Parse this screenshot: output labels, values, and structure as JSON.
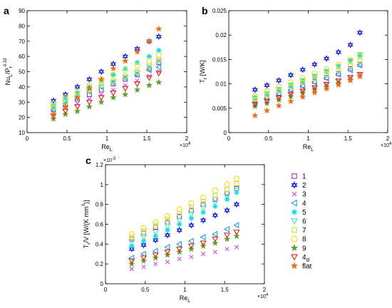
{
  "figure": {
    "width": 550,
    "height": 432
  },
  "legend": [
    {
      "key": "1",
      "label": "1",
      "color": "#9b30c8",
      "marker": "square"
    },
    {
      "key": "2",
      "label": "2",
      "color": "#1a28d6",
      "marker": "star6"
    },
    {
      "key": "3",
      "label": "3",
      "color": "#d04ce0",
      "marker": "x"
    },
    {
      "key": "4",
      "label": "4",
      "color": "#1aa0dc",
      "marker": "triangle-left"
    },
    {
      "key": "5",
      "label": "5",
      "color": "#10dcee",
      "marker": "asterisk"
    },
    {
      "key": "6",
      "label": "6",
      "color": "#48e2a6",
      "marker": "triangle-down"
    },
    {
      "key": "7",
      "label": "7",
      "color": "#bde23a",
      "marker": "square"
    },
    {
      "key": "8",
      "label": "8",
      "color": "#f4dc14",
      "marker": "circle"
    },
    {
      "key": "9",
      "label": "9",
      "color": "#5ea02a",
      "marker": "star5"
    },
    {
      "key": "4d",
      "label": "4",
      "sub": "d",
      "color": "#e02418",
      "marker": "triangle-down"
    },
    {
      "key": "flat",
      "label": "flat",
      "color": "#f06a18",
      "marker": "star5"
    }
  ],
  "chart_data": [
    {
      "panel": "a",
      "type": "scatter",
      "xlabel": "Re",
      "xlabel_sub": "L",
      "ylabel": "Nu",
      "ylabel_sub": "L",
      "ylabel_rest": "/P",
      "ylabel_sub2": "r",
      "ylabel_sup": "0.33",
      "xlim": [
        0,
        20000
      ],
      "ylim": [
        10,
        90
      ],
      "xticks": [
        0,
        0.5,
        1,
        1.5,
        2
      ],
      "xtick_labels": [
        "0",
        "0.5",
        "1",
        "1.5",
        "2"
      ],
      "x_multiplier": "×10",
      "x_multiplier_exp": "4",
      "yticks": [
        10,
        20,
        30,
        40,
        50,
        60,
        70,
        80,
        90
      ],
      "ytick_labels": [
        "10",
        "20",
        "30",
        "40",
        "50",
        "60",
        "70",
        "80",
        "90"
      ],
      "x": [
        3300,
        4800,
        6300,
        7800,
        9300,
        10800,
        12300,
        13800,
        15300,
        16500
      ],
      "series": [
        {
          "key": "1",
          "values": [
            25,
            28,
            32,
            35,
            38,
            42,
            45,
            48,
            52,
            56
          ]
        },
        {
          "key": "2",
          "values": [
            31,
            35,
            40,
            45,
            50,
            55,
            60,
            65,
            70,
            73
          ]
        },
        {
          "key": "3",
          "values": [
            23,
            26,
            29,
            32,
            35,
            38,
            41,
            44,
            47,
            50
          ]
        },
        {
          "key": "4",
          "values": [
            25,
            29,
            33,
            37,
            40,
            43,
            46,
            48,
            51,
            53
          ]
        },
        {
          "key": "5",
          "values": [
            28,
            32,
            36,
            40,
            44,
            48,
            52,
            56,
            60,
            64
          ]
        },
        {
          "key": "6",
          "values": [
            26,
            30,
            33,
            37,
            40,
            43,
            46,
            49,
            53,
            57
          ]
        },
        {
          "key": "7",
          "values": [
            27,
            30,
            34,
            38,
            41,
            44,
            47,
            50,
            54,
            58
          ]
        },
        {
          "key": "8",
          "values": [
            29,
            33,
            37,
            41,
            45,
            48,
            51,
            54,
            57,
            61
          ]
        },
        {
          "key": "9",
          "values": [
            19,
            22,
            24,
            27,
            30,
            33,
            35,
            38,
            41,
            43
          ]
        },
        {
          "key": "4d",
          "values": [
            21,
            24,
            27,
            30,
            33,
            36,
            39,
            42,
            46,
            49
          ]
        },
        {
          "key": "flat",
          "values": [
            22,
            27,
            33,
            39,
            45,
            52,
            57,
            63,
            70,
            78
          ]
        }
      ]
    },
    {
      "panel": "b",
      "type": "scatter",
      "xlabel": "Re",
      "xlabel_sub": "L",
      "ylabel": "T",
      "ylabel_sub": "r",
      "ylabel_rest": " [W/K]",
      "xlim": [
        0,
        20000
      ],
      "ylim": [
        0,
        0.025
      ],
      "xticks": [
        0,
        0.5,
        1,
        1.5,
        2
      ],
      "xtick_labels": [
        "0",
        "0.5",
        "1",
        "1.5",
        "2"
      ],
      "x_multiplier": "×10",
      "x_multiplier_exp": "4",
      "yticks": [
        0,
        0.005,
        0.01,
        0.015,
        0.02,
        0.025
      ],
      "ytick_labels": [
        "0",
        "0.005",
        "0.01",
        "0.015",
        "0.02",
        "0.025"
      ],
      "x": [
        3300,
        4800,
        6300,
        7800,
        9300,
        10800,
        12300,
        13800,
        15300,
        16500
      ],
      "series": [
        {
          "key": "1",
          "values": [
            0.0065,
            0.0073,
            0.0081,
            0.0089,
            0.0097,
            0.0105,
            0.0113,
            0.0121,
            0.0131,
            0.014
          ]
        },
        {
          "key": "2",
          "values": [
            0.0088,
            0.0097,
            0.0107,
            0.0118,
            0.0129,
            0.014,
            0.0152,
            0.0165,
            0.018,
            0.0205
          ]
        },
        {
          "key": "3",
          "values": [
            0.0057,
            0.0064,
            0.0071,
            0.0078,
            0.0085,
            0.0092,
            0.0099,
            0.0106,
            0.0113,
            0.012
          ]
        },
        {
          "key": "4",
          "values": [
            0.0063,
            0.0071,
            0.0079,
            0.0087,
            0.0095,
            0.0103,
            0.0111,
            0.0119,
            0.0128,
            0.0138
          ]
        },
        {
          "key": "5",
          "values": [
            0.0072,
            0.008,
            0.0089,
            0.0098,
            0.0107,
            0.0116,
            0.0126,
            0.0136,
            0.0147,
            0.0158
          ]
        },
        {
          "key": "6",
          "values": [
            0.007,
            0.0079,
            0.0088,
            0.0097,
            0.0106,
            0.0115,
            0.0125,
            0.0135,
            0.0147,
            0.016
          ]
        },
        {
          "key": "7",
          "values": [
            0.0068,
            0.0077,
            0.0086,
            0.0094,
            0.0102,
            0.011,
            0.0119,
            0.0128,
            0.0137,
            0.0147
          ]
        },
        {
          "key": "8",
          "values": [
            0.0075,
            0.0085,
            0.0094,
            0.0103,
            0.0112,
            0.0121,
            0.013,
            0.0139,
            0.0149,
            0.0158
          ]
        },
        {
          "key": "9",
          "values": [
            0.0054,
            0.006,
            0.0067,
            0.0074,
            0.0081,
            0.0088,
            0.0094,
            0.0101,
            0.0108,
            0.0115
          ]
        },
        {
          "key": "4d",
          "values": [
            0.0058,
            0.0064,
            0.0071,
            0.0078,
            0.0085,
            0.0092,
            0.0099,
            0.0106,
            0.0113,
            0.0119
          ]
        },
        {
          "key": "flat",
          "values": [
            0.0035,
            0.0045,
            0.0055,
            0.0064,
            0.0073,
            0.0082,
            0.009,
            0.0098,
            0.0107,
            0.0115
          ]
        }
      ]
    },
    {
      "panel": "c",
      "type": "scatter",
      "xlabel": "Re",
      "xlabel_sub": "L",
      "ylabel": "T",
      "ylabel_sub": "r",
      "ylabel_rest": "/V [W/(K mm",
      "ylabel_sup": "3",
      "ylabel_end": ")]",
      "xlim": [
        0,
        20000
      ],
      "ylim": [
        0,
        0.0012
      ],
      "xticks": [
        0,
        0.5,
        1,
        1.5,
        2
      ],
      "xtick_labels": [
        "0",
        "0.5",
        "1",
        "1.5",
        "2"
      ],
      "x_multiplier": "×10",
      "x_multiplier_exp": "4",
      "yticks": [
        0,
        0.0002,
        0.0004,
        0.0006,
        0.0008,
        0.001,
        0.0012
      ],
      "ytick_labels": [
        "0",
        "0.2",
        "0.4",
        "0.6",
        "0.8",
        "1",
        "1.2"
      ],
      "y_multiplier": "×10",
      "y_multiplier_exp": "-3",
      "x": [
        3300,
        4800,
        6300,
        7800,
        9300,
        10800,
        12300,
        13800,
        15300,
        16500
      ],
      "series": [
        {
          "key": "1",
          "values": [
            0.00045,
            0.00051,
            0.00057,
            0.00062,
            0.00068,
            0.00074,
            0.0008,
            0.00085,
            0.00091,
            0.00096
          ]
        },
        {
          "key": "2",
          "values": [
            0.00035,
            0.00039,
            0.00044,
            0.00049,
            0.00054,
            0.00059,
            0.00064,
            0.00069,
            0.00074,
            0.0008
          ]
        },
        {
          "key": "3",
          "values": [
            0.00015,
            0.00017,
            0.0002,
            0.00022,
            0.00025,
            0.00027,
            0.0003,
            0.00032,
            0.00035,
            0.00037
          ]
        },
        {
          "key": "4",
          "values": [
            0.00026,
            0.0003,
            0.00033,
            0.00037,
            0.0004,
            0.00043,
            0.00047,
            0.0005,
            0.00055,
            0.00059
          ]
        },
        {
          "key": "5",
          "values": [
            0.00038,
            0.00043,
            0.00048,
            0.00054,
            0.0006,
            0.00066,
            0.00072,
            0.00078,
            0.00085,
            0.00092
          ]
        },
        {
          "key": "6",
          "values": [
            0.00042,
            0.00047,
            0.00052,
            0.00058,
            0.00064,
            0.0007,
            0.00076,
            0.00082,
            0.00088,
            0.00094
          ]
        },
        {
          "key": "7",
          "values": [
            0.00047,
            0.00053,
            0.00059,
            0.00065,
            0.00071,
            0.00077,
            0.00083,
            0.00089,
            0.00095,
            0.00101
          ]
        },
        {
          "key": "8",
          "values": [
            0.0005,
            0.00056,
            0.00062,
            0.00068,
            0.00075,
            0.00081,
            0.00087,
            0.00094,
            0.001,
            0.00106
          ]
        },
        {
          "key": "9",
          "values": [
            0.0002,
            0.00023,
            0.00026,
            0.00029,
            0.00032,
            0.00035,
            0.00038,
            0.00041,
            0.00045,
            0.00048
          ]
        },
        {
          "key": "4d",
          "values": [
            0.00023,
            0.00026,
            0.00029,
            0.00032,
            0.00035,
            0.00038,
            0.00041,
            0.00045,
            0.00049,
            0.00052
          ]
        }
      ]
    }
  ]
}
